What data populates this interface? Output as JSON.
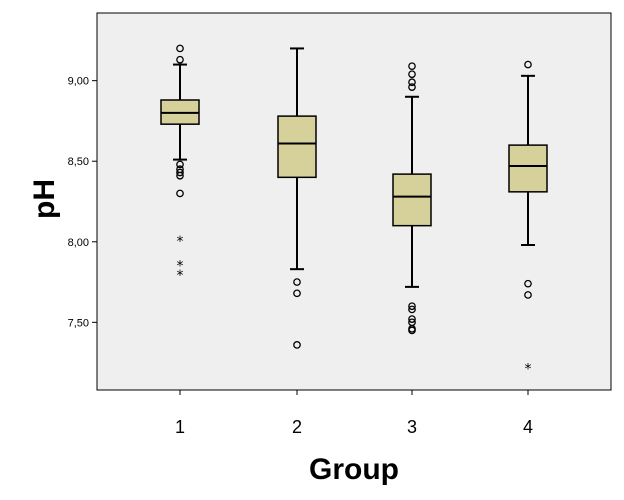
{
  "chart_data": {
    "type": "boxplot",
    "xlabel": "Group",
    "ylabel": "pH",
    "categories": [
      "1",
      "2",
      "3",
      "4"
    ],
    "ylim": [
      7.08,
      9.42
    ],
    "yticks": [
      7.5,
      8.0,
      8.5,
      9.0
    ],
    "ytick_labels": [
      "7,50",
      "8,00",
      "8,50",
      "9,00"
    ],
    "grid": false,
    "colors": {
      "plot_bg": "#efefef",
      "box_fill": "#d6d09b",
      "stroke": "#000000"
    },
    "boxes": [
      {
        "category": "1",
        "whisker_low": 8.51,
        "q1": 8.73,
        "median": 8.8,
        "q3": 8.88,
        "whisker_high": 9.1,
        "outliers": [
          9.2,
          9.13,
          8.48,
          8.45,
          8.43,
          8.41,
          8.3
        ],
        "extremes": [
          8.01,
          7.86,
          7.8
        ]
      },
      {
        "category": "2",
        "whisker_low": 7.83,
        "q1": 8.4,
        "median": 8.61,
        "q3": 8.78,
        "whisker_high": 9.2,
        "outliers": [
          7.75,
          7.68,
          7.36
        ],
        "extremes": []
      },
      {
        "category": "3",
        "whisker_low": 7.72,
        "q1": 8.1,
        "median": 8.28,
        "q3": 8.42,
        "whisker_high": 8.9,
        "outliers": [
          9.09,
          9.04,
          8.99,
          8.96,
          7.6,
          7.58,
          7.52,
          7.5,
          7.46,
          7.45
        ],
        "extremes": []
      },
      {
        "category": "4",
        "whisker_low": 7.98,
        "q1": 8.31,
        "median": 8.47,
        "q3": 8.6,
        "whisker_high": 9.03,
        "outliers": [
          9.1,
          7.74,
          7.67
        ],
        "extremes": [
          7.22
        ]
      }
    ]
  }
}
